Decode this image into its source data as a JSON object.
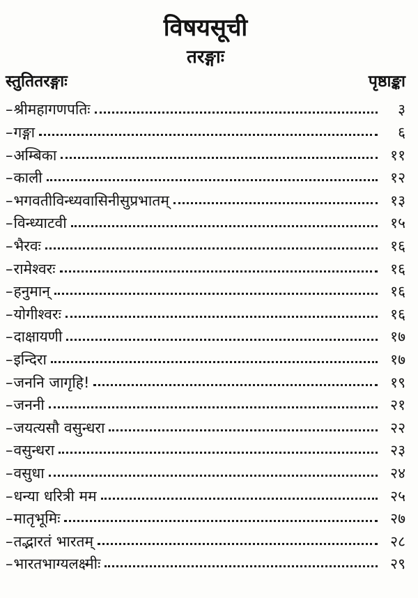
{
  "page": {
    "title": "विषयसूची",
    "subtitle": "तरङ्गाः",
    "columns": {
      "left": "स्तुतितरङ्गाः",
      "right": "पृष्ठाङ्का"
    },
    "entry_prefix": "–",
    "entries": [
      {
        "title": "श्रीमहागणपतिः",
        "page": "३"
      },
      {
        "title": "गङ्गा",
        "page": "६"
      },
      {
        "title": "अम्बिका",
        "page": "११"
      },
      {
        "title": "काली",
        "page": "१२"
      },
      {
        "title": "भगवतीविन्ध्यवासिनीसुप्रभातम्",
        "page": "१३"
      },
      {
        "title": "विन्ध्याटवी",
        "page": "१५"
      },
      {
        "title": "भैरवः",
        "page": "१६"
      },
      {
        "title": "रामेश्वरः",
        "page": "१६"
      },
      {
        "title": "हनुमान्",
        "page": "१६"
      },
      {
        "title": "योगीश्वरः",
        "page": "१६"
      },
      {
        "title": "दाक्षायणी",
        "page": "१७"
      },
      {
        "title": "इन्दिरा",
        "page": "१७"
      },
      {
        "title": "जननि जागृहि!",
        "page": "१९"
      },
      {
        "title": "जननी",
        "page": "२१"
      },
      {
        "title": "जयत्यसौ वसुन्धरा",
        "page": "२२"
      },
      {
        "title": "वसुन्धरा",
        "page": "२३"
      },
      {
        "title": "वसुधा",
        "page": "२४"
      },
      {
        "title": "धन्या धरित्री मम",
        "page": "२५"
      },
      {
        "title": "मातृभूमिः",
        "page": "२७"
      },
      {
        "title": "तद्भारतं भारतम्",
        "page": "२८"
      },
      {
        "title": "भारतभाग्यलक्ष्मीः",
        "page": "२९"
      }
    ]
  }
}
